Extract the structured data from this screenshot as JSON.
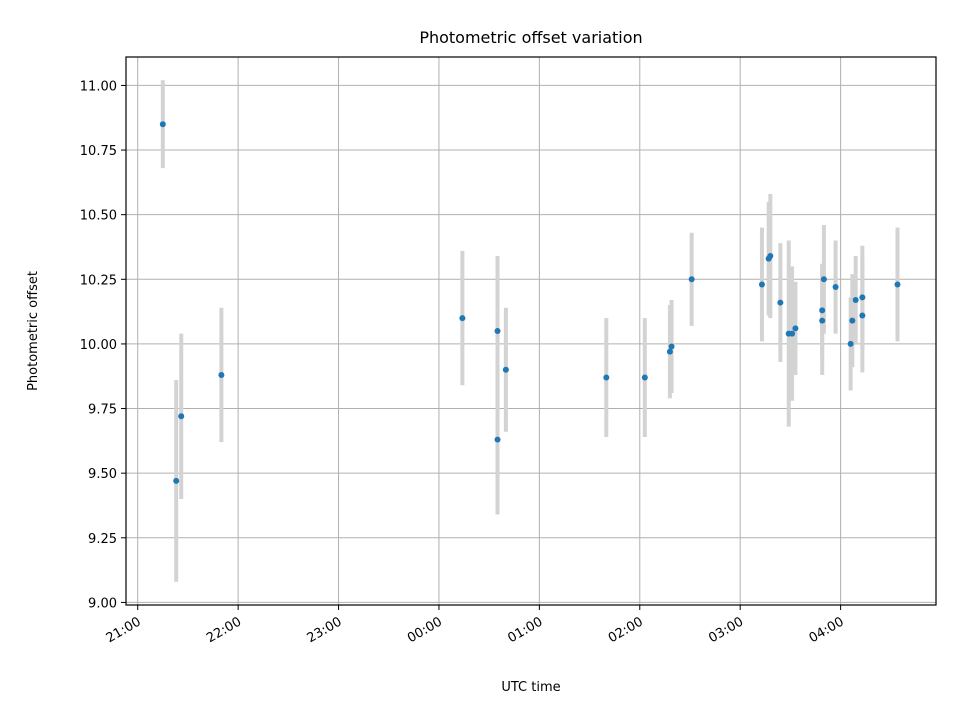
{
  "chart_data": {
    "type": "scatter",
    "title": "Photometric offset variation",
    "xlabel": "UTC time",
    "ylabel": "Photometric offset",
    "x_axis": {
      "kind": "time",
      "range": [
        "20:53",
        "04:57"
      ],
      "ticks": [
        "21:00",
        "22:00",
        "23:00",
        "00:00",
        "01:00",
        "02:00",
        "03:00",
        "04:00"
      ]
    },
    "y_axis": {
      "range": [
        8.99,
        11.11
      ],
      "ticks": [
        "9.00",
        "9.25",
        "9.50",
        "9.75",
        "10.00",
        "10.25",
        "10.50",
        "10.75",
        "11.00"
      ]
    },
    "grid": true,
    "colors": {
      "point": "#1f77b4",
      "errorbar": "#d3d3d3"
    },
    "points": [
      {
        "x": "21:15",
        "y": 10.85,
        "err": 0.17
      },
      {
        "x": "21:23",
        "y": 9.47,
        "err": 0.39
      },
      {
        "x": "21:26",
        "y": 9.72,
        "err": 0.32
      },
      {
        "x": "21:50",
        "y": 9.88,
        "err": 0.26
      },
      {
        "x": "00:14",
        "y": 10.1,
        "err": 0.26
      },
      {
        "x": "00:35",
        "y": 10.05,
        "err": 0.29
      },
      {
        "x": "00:35",
        "y": 9.63,
        "err": 0.29
      },
      {
        "x": "00:40",
        "y": 9.9,
        "err": 0.24
      },
      {
        "x": "01:40",
        "y": 9.87,
        "err": 0.23
      },
      {
        "x": "02:03",
        "y": 9.87,
        "err": 0.23
      },
      {
        "x": "02:18",
        "y": 9.97,
        "err": 0.18
      },
      {
        "x": "02:19",
        "y": 9.99,
        "err": 0.18
      },
      {
        "x": "02:31",
        "y": 10.25,
        "err": 0.18
      },
      {
        "x": "03:13",
        "y": 10.23,
        "err": 0.22
      },
      {
        "x": "03:17",
        "y": 10.33,
        "err": 0.22
      },
      {
        "x": "03:18",
        "y": 10.34,
        "err": 0.24
      },
      {
        "x": "03:24",
        "y": 10.16,
        "err": 0.23
      },
      {
        "x": "03:29",
        "y": 10.04,
        "err": 0.36
      },
      {
        "x": "03:31",
        "y": 10.04,
        "err": 0.26
      },
      {
        "x": "03:33",
        "y": 10.06,
        "err": 0.18
      },
      {
        "x": "03:50",
        "y": 10.25,
        "err": 0.21
      },
      {
        "x": "03:49",
        "y": 10.13,
        "err": 0.18
      },
      {
        "x": "03:49",
        "y": 10.09,
        "err": 0.21
      },
      {
        "x": "03:57",
        "y": 10.22,
        "err": 0.18
      },
      {
        "x": "04:06",
        "y": 10.0,
        "err": 0.18
      },
      {
        "x": "04:07",
        "y": 10.09,
        "err": 0.18
      },
      {
        "x": "04:09",
        "y": 10.17,
        "err": 0.17
      },
      {
        "x": "04:13",
        "y": 10.18,
        "err": 0.2
      },
      {
        "x": "04:13",
        "y": 10.11,
        "err": 0.22
      },
      {
        "x": "04:34",
        "y": 10.23,
        "err": 0.22
      }
    ]
  }
}
